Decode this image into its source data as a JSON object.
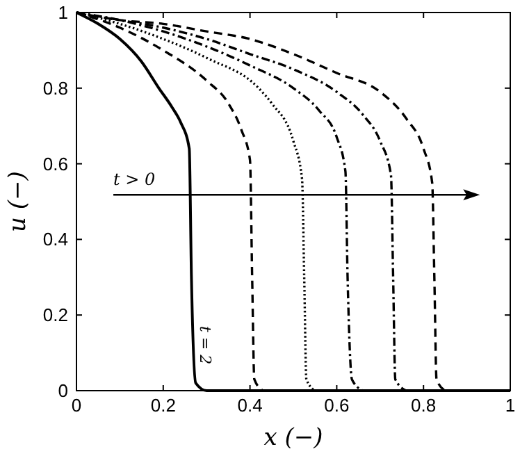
{
  "chart_data": {
    "type": "line",
    "xlabel": "x (−)",
    "ylabel": "u (−)",
    "xlim": [
      0,
      1
    ],
    "ylim": [
      0,
      1
    ],
    "xticks": [
      0,
      0.2,
      0.4,
      0.6,
      0.8,
      1
    ],
    "yticks": [
      0,
      0.2,
      0.4,
      0.6,
      0.8,
      1
    ],
    "grid": false,
    "annotations": [
      "t > 0",
      "t = 2"
    ],
    "series": [
      {
        "color": "#000000",
        "line_style": "solid",
        "x": [
          0,
          0.05,
          0.1,
          0.15,
          0.19,
          0.22,
          0.24,
          0.26,
          0.265,
          0.275,
          0.3,
          1
        ],
        "values": [
          1,
          0.97,
          0.93,
          0.87,
          0.8,
          0.75,
          0.71,
          0.64,
          0.3,
          0.02,
          0,
          0
        ]
      },
      {
        "color": "#000000",
        "line_style": "dashed",
        "x": [
          0,
          0.1,
          0.2,
          0.3,
          0.35,
          0.38,
          0.4,
          0.405,
          0.41,
          0.43
        ],
        "values": [
          1,
          0.96,
          0.9,
          0.82,
          0.76,
          0.69,
          0.61,
          0.3,
          0.03,
          0
        ]
      },
      {
        "color": "#000000",
        "line_style": "dotted",
        "x": [
          0,
          0.1,
          0.2,
          0.3,
          0.42,
          0.45,
          0.5,
          0.52,
          0.525,
          0.53,
          0.55
        ],
        "values": [
          1,
          0.97,
          0.93,
          0.88,
          0.8,
          0.76,
          0.66,
          0.56,
          0.3,
          0.03,
          0
        ]
      },
      {
        "color": "#000000",
        "line_style": "dashdot",
        "x": [
          0,
          0.1,
          0.2,
          0.3,
          0.4,
          0.5,
          0.56,
          0.6,
          0.62,
          0.625,
          0.635,
          0.66
        ],
        "values": [
          1,
          0.98,
          0.95,
          0.91,
          0.86,
          0.8,
          0.74,
          0.67,
          0.58,
          0.3,
          0.03,
          0
        ]
      },
      {
        "color": "#000000",
        "line_style": "dashdot",
        "x": [
          0,
          0.1,
          0.2,
          0.3,
          0.4,
          0.5,
          0.6,
          0.66,
          0.7,
          0.725,
          0.73,
          0.735,
          0.76
        ],
        "values": [
          1,
          0.98,
          0.96,
          0.93,
          0.89,
          0.85,
          0.79,
          0.73,
          0.66,
          0.57,
          0.3,
          0.03,
          0
        ]
      },
      {
        "color": "#000000",
        "line_style": "dashed",
        "x": [
          0,
          0.1,
          0.2,
          0.3,
          0.4,
          0.5,
          0.6,
          0.7,
          0.76,
          0.8,
          0.82,
          0.825,
          0.83,
          0.85
        ],
        "values": [
          1,
          0.98,
          0.97,
          0.95,
          0.93,
          0.89,
          0.84,
          0.79,
          0.72,
          0.64,
          0.55,
          0.3,
          0.03,
          0
        ]
      }
    ]
  }
}
